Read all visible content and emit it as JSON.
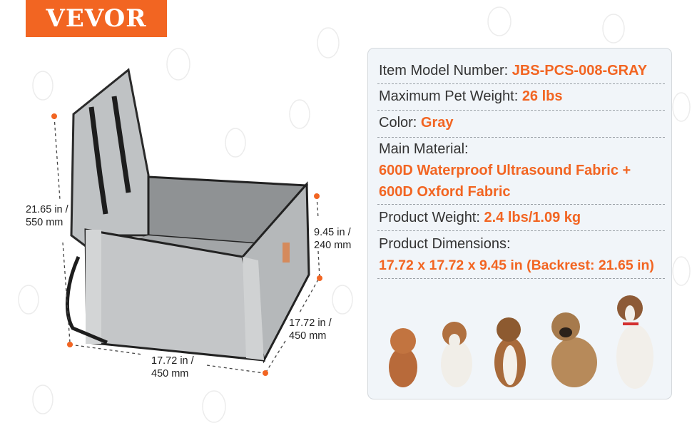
{
  "brand": {
    "logo_text": "VEVOR",
    "color": "#f26522"
  },
  "dimensions": {
    "backrest": {
      "line1": "21.65 in /",
      "line2": "550 mm"
    },
    "height": {
      "line1": "9.45 in /",
      "line2": "240 mm"
    },
    "depth": {
      "line1": "17.72 in /",
      "line2": "450 mm"
    },
    "width": {
      "line1": "17.72 in /",
      "line2": "450 mm"
    }
  },
  "specs": {
    "model": {
      "label": "Item Model Number: ",
      "value": "JBS-PCS-008-GRAY"
    },
    "max_weight": {
      "label": "Maximum Pet Weight: ",
      "value": "26 lbs"
    },
    "color": {
      "label": "Color: ",
      "value": "Gray"
    },
    "material": {
      "label": "Main Material:",
      "value_line1": "600D Waterproof Ultrasound Fabric +",
      "value_line2": "600D Oxford Fabric"
    },
    "product_weight": {
      "label": "Product Weight: ",
      "value": "2.4 lbs/1.09 kg"
    },
    "dimensions": {
      "label": "Product Dimensions:",
      "value": "17.72 x 17.72 x 9.45 in (Backrest: 21.65 in)"
    }
  },
  "colors": {
    "accent": "#f26522",
    "panel_bg": "#f1f5f9",
    "text": "#333333"
  }
}
